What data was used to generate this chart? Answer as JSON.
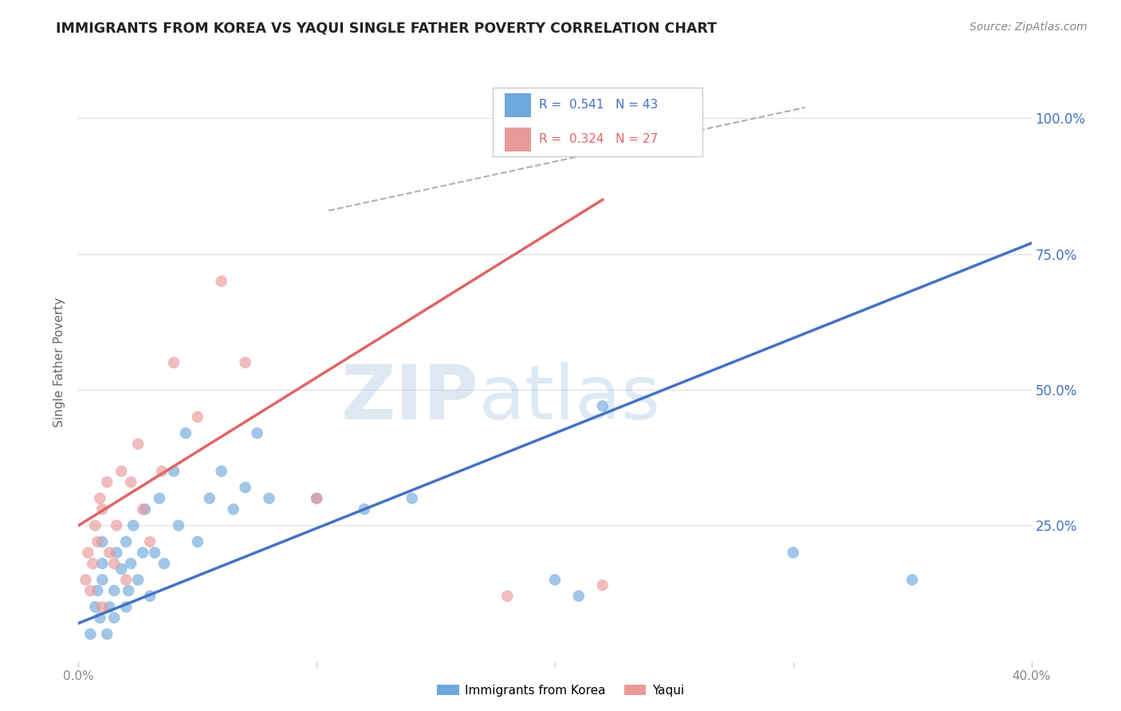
{
  "title": "IMMIGRANTS FROM KOREA VS YAQUI SINGLE FATHER POVERTY CORRELATION CHART",
  "source": "Source: ZipAtlas.com",
  "ylabel": "Single Father Poverty",
  "ytick_labels": [
    "100.0%",
    "75.0%",
    "50.0%",
    "25.0%"
  ],
  "ytick_values": [
    1.0,
    0.75,
    0.5,
    0.25
  ],
  "xlim": [
    0.0,
    0.4
  ],
  "ylim": [
    0.0,
    1.1
  ],
  "legend_blue_r": "0.541",
  "legend_blue_n": "43",
  "legend_pink_r": "0.324",
  "legend_pink_n": "27",
  "legend_label_blue": "Immigrants from Korea",
  "legend_label_pink": "Yaqui",
  "watermark_zip": "ZIP",
  "watermark_atlas": "atlas",
  "blue_color": "#6fa8dc",
  "pink_color": "#ea9999",
  "line_blue": "#4472c4",
  "line_pink": "#e06666",
  "line_dash_color": "#b0b0b0",
  "blue_scatter_x": [
    0.005,
    0.007,
    0.008,
    0.009,
    0.01,
    0.01,
    0.01,
    0.012,
    0.013,
    0.015,
    0.015,
    0.016,
    0.018,
    0.02,
    0.02,
    0.021,
    0.022,
    0.023,
    0.025,
    0.027,
    0.028,
    0.03,
    0.032,
    0.034,
    0.036,
    0.04,
    0.042,
    0.045,
    0.05,
    0.055,
    0.06,
    0.065,
    0.07,
    0.075,
    0.08,
    0.1,
    0.12,
    0.14,
    0.2,
    0.21,
    0.22,
    0.3,
    0.35
  ],
  "blue_scatter_y": [
    0.05,
    0.1,
    0.13,
    0.08,
    0.15,
    0.18,
    0.22,
    0.05,
    0.1,
    0.08,
    0.13,
    0.2,
    0.17,
    0.1,
    0.22,
    0.13,
    0.18,
    0.25,
    0.15,
    0.2,
    0.28,
    0.12,
    0.2,
    0.3,
    0.18,
    0.35,
    0.25,
    0.42,
    0.22,
    0.3,
    0.35,
    0.28,
    0.32,
    0.42,
    0.3,
    0.3,
    0.28,
    0.3,
    0.15,
    0.12,
    0.47,
    0.2,
    0.15
  ],
  "pink_scatter_x": [
    0.003,
    0.004,
    0.005,
    0.006,
    0.007,
    0.008,
    0.009,
    0.01,
    0.01,
    0.012,
    0.013,
    0.015,
    0.016,
    0.018,
    0.02,
    0.022,
    0.025,
    0.027,
    0.03,
    0.035,
    0.04,
    0.05,
    0.06,
    0.07,
    0.1,
    0.18,
    0.22
  ],
  "pink_scatter_y": [
    0.15,
    0.2,
    0.13,
    0.18,
    0.25,
    0.22,
    0.3,
    0.1,
    0.28,
    0.33,
    0.2,
    0.18,
    0.25,
    0.35,
    0.15,
    0.33,
    0.4,
    0.28,
    0.22,
    0.35,
    0.55,
    0.45,
    0.7,
    0.55,
    0.3,
    0.12,
    0.14
  ],
  "blue_line_x": [
    0.0,
    0.4
  ],
  "blue_line_y": [
    0.07,
    0.77
  ],
  "pink_line_x": [
    0.0,
    0.22
  ],
  "pink_line_y": [
    0.25,
    0.85
  ],
  "diag_line_x": [
    0.105,
    0.305
  ],
  "diag_line_y": [
    0.83,
    1.02
  ],
  "xtick_positions": [
    0.0,
    0.1,
    0.2,
    0.3,
    0.4
  ],
  "xtick_at_ends_only": true
}
